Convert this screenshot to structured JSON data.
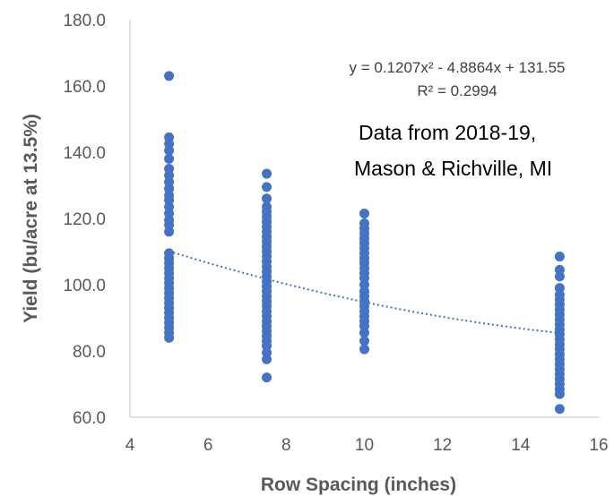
{
  "chart_data": {
    "type": "scatter",
    "xlabel": "Row Spacing (inches)",
    "ylabel": "Yield (bu/acre at 13.5%)",
    "xlim": [
      4,
      16
    ],
    "ylim": [
      60,
      180
    ],
    "x_ticks": [
      "4",
      "6",
      "8",
      "10",
      "12",
      "14",
      "16"
    ],
    "y_ticks": [
      "60.0",
      "80.0",
      "100.0",
      "120.0",
      "140.0",
      "160.0",
      "180.0"
    ],
    "grid": false,
    "marker_color": "#4472C4",
    "trendline": {
      "type": "polynomial",
      "degree": 2,
      "coefficients": [
        0.1207,
        -4.8864,
        131.55
      ],
      "x_range": [
        5,
        15
      ],
      "style": "dotted",
      "equation_label": "y = 0.1207x² - 4.8864x + 131.55",
      "r2_label": "R² = 0.2994"
    },
    "annotation": [
      "Data from 2018-19,",
      "Mason & Richville, MI"
    ],
    "points": [
      {
        "x": 5,
        "y": 163
      },
      {
        "x": 5,
        "y": 144.5
      },
      {
        "x": 5,
        "y": 142.5
      },
      {
        "x": 5,
        "y": 140.5
      },
      {
        "x": 5,
        "y": 138
      },
      {
        "x": 5,
        "y": 135
      },
      {
        "x": 5,
        "y": 133
      },
      {
        "x": 5,
        "y": 131
      },
      {
        "x": 5,
        "y": 129
      },
      {
        "x": 5,
        "y": 127
      },
      {
        "x": 5,
        "y": 125.5
      },
      {
        "x": 5,
        "y": 123.5
      },
      {
        "x": 5,
        "y": 121.5
      },
      {
        "x": 5,
        "y": 119.5
      },
      {
        "x": 5,
        "y": 118
      },
      {
        "x": 5,
        "y": 116
      },
      {
        "x": 5,
        "y": 109.5
      },
      {
        "x": 5,
        "y": 108
      },
      {
        "x": 5,
        "y": 106.5
      },
      {
        "x": 5,
        "y": 105
      },
      {
        "x": 5,
        "y": 103.5
      },
      {
        "x": 5,
        "y": 102
      },
      {
        "x": 5,
        "y": 100.5
      },
      {
        "x": 5,
        "y": 99
      },
      {
        "x": 5,
        "y": 97.5
      },
      {
        "x": 5,
        "y": 96
      },
      {
        "x": 5,
        "y": 94.5
      },
      {
        "x": 5,
        "y": 93
      },
      {
        "x": 5,
        "y": 91.5
      },
      {
        "x": 5,
        "y": 90
      },
      {
        "x": 5,
        "y": 88.5
      },
      {
        "x": 5,
        "y": 87
      },
      {
        "x": 5,
        "y": 85.5
      },
      {
        "x": 5,
        "y": 84
      },
      {
        "x": 7.5,
        "y": 133.5
      },
      {
        "x": 7.5,
        "y": 129.5
      },
      {
        "x": 7.5,
        "y": 126
      },
      {
        "x": 7.5,
        "y": 123.5
      },
      {
        "x": 7.5,
        "y": 122
      },
      {
        "x": 7.5,
        "y": 120.5
      },
      {
        "x": 7.5,
        "y": 119
      },
      {
        "x": 7.5,
        "y": 117.5
      },
      {
        "x": 7.5,
        "y": 116
      },
      {
        "x": 7.5,
        "y": 114.5
      },
      {
        "x": 7.5,
        "y": 113
      },
      {
        "x": 7.5,
        "y": 111.5
      },
      {
        "x": 7.5,
        "y": 110
      },
      {
        "x": 7.5,
        "y": 108.5
      },
      {
        "x": 7.5,
        "y": 107
      },
      {
        "x": 7.5,
        "y": 105.5
      },
      {
        "x": 7.5,
        "y": 104
      },
      {
        "x": 7.5,
        "y": 102.5
      },
      {
        "x": 7.5,
        "y": 101
      },
      {
        "x": 7.5,
        "y": 99.5
      },
      {
        "x": 7.5,
        "y": 98
      },
      {
        "x": 7.5,
        "y": 96.5
      },
      {
        "x": 7.5,
        "y": 95
      },
      {
        "x": 7.5,
        "y": 93.5
      },
      {
        "x": 7.5,
        "y": 92
      },
      {
        "x": 7.5,
        "y": 90.5
      },
      {
        "x": 7.5,
        "y": 89
      },
      {
        "x": 7.5,
        "y": 87.5
      },
      {
        "x": 7.5,
        "y": 86
      },
      {
        "x": 7.5,
        "y": 84.5
      },
      {
        "x": 7.5,
        "y": 83
      },
      {
        "x": 7.5,
        "y": 81.5
      },
      {
        "x": 7.5,
        "y": 79.5
      },
      {
        "x": 7.5,
        "y": 77.5
      },
      {
        "x": 7.5,
        "y": 72
      },
      {
        "x": 10,
        "y": 121.5
      },
      {
        "x": 10,
        "y": 118.5
      },
      {
        "x": 10,
        "y": 117
      },
      {
        "x": 10,
        "y": 115.5
      },
      {
        "x": 10,
        "y": 114
      },
      {
        "x": 10,
        "y": 112.5
      },
      {
        "x": 10,
        "y": 111
      },
      {
        "x": 10,
        "y": 109.5
      },
      {
        "x": 10,
        "y": 108
      },
      {
        "x": 10,
        "y": 106.5
      },
      {
        "x": 10,
        "y": 105
      },
      {
        "x": 10,
        "y": 103.5
      },
      {
        "x": 10,
        "y": 102
      },
      {
        "x": 10,
        "y": 100
      },
      {
        "x": 10,
        "y": 98
      },
      {
        "x": 10,
        "y": 96.5
      },
      {
        "x": 10,
        "y": 95
      },
      {
        "x": 10,
        "y": 93.5
      },
      {
        "x": 10,
        "y": 92
      },
      {
        "x": 10,
        "y": 90.5
      },
      {
        "x": 10,
        "y": 89
      },
      {
        "x": 10,
        "y": 87.5
      },
      {
        "x": 10,
        "y": 85.5
      },
      {
        "x": 10,
        "y": 83
      },
      {
        "x": 10,
        "y": 80.5
      },
      {
        "x": 15,
        "y": 108.5
      },
      {
        "x": 15,
        "y": 104.5
      },
      {
        "x": 15,
        "y": 102.5
      },
      {
        "x": 15,
        "y": 99
      },
      {
        "x": 15,
        "y": 97
      },
      {
        "x": 15,
        "y": 95.5
      },
      {
        "x": 15,
        "y": 94
      },
      {
        "x": 15,
        "y": 92.5
      },
      {
        "x": 15,
        "y": 91
      },
      {
        "x": 15,
        "y": 89.5
      },
      {
        "x": 15,
        "y": 88
      },
      {
        "x": 15,
        "y": 86.5
      },
      {
        "x": 15,
        "y": 85
      },
      {
        "x": 15,
        "y": 83.5
      },
      {
        "x": 15,
        "y": 82
      },
      {
        "x": 15,
        "y": 80.5
      },
      {
        "x": 15,
        "y": 79
      },
      {
        "x": 15,
        "y": 77.5
      },
      {
        "x": 15,
        "y": 76
      },
      {
        "x": 15,
        "y": 74.5
      },
      {
        "x": 15,
        "y": 73
      },
      {
        "x": 15,
        "y": 71.5
      },
      {
        "x": 15,
        "y": 70
      },
      {
        "x": 15,
        "y": 68.5
      },
      {
        "x": 15,
        "y": 67
      },
      {
        "x": 15,
        "y": 62.5
      }
    ]
  }
}
